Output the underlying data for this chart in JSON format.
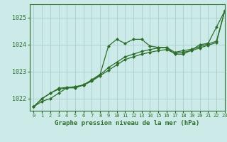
{
  "background_color": "#cceae7",
  "grid_color": "#aacccc",
  "line_color": "#2d6e2d",
  "title": "Graphe pression niveau de la mer (hPa)",
  "xlim": [
    -0.5,
    23
  ],
  "ylim": [
    1021.55,
    1025.5
  ],
  "yticks": [
    1022,
    1023,
    1024,
    1025
  ],
  "xticks": [
    0,
    1,
    2,
    3,
    4,
    5,
    6,
    7,
    8,
    9,
    10,
    11,
    12,
    13,
    14,
    15,
    16,
    17,
    18,
    19,
    20,
    21,
    22,
    23
  ],
  "series1": [
    1021.7,
    1021.9,
    1022.0,
    1022.2,
    1022.4,
    1022.45,
    1022.5,
    1022.7,
    1022.9,
    1023.95,
    1024.2,
    1024.05,
    1024.2,
    1024.2,
    1023.95,
    1023.9,
    1023.9,
    1023.65,
    1023.65,
    1023.8,
    1024.0,
    1024.05,
    1024.65,
    1025.25
  ],
  "series2": [
    1021.7,
    1022.0,
    1022.2,
    1022.35,
    1022.4,
    1022.4,
    1022.5,
    1022.65,
    1022.85,
    1023.05,
    1023.25,
    1023.45,
    1023.55,
    1023.65,
    1023.72,
    1023.78,
    1023.82,
    1023.68,
    1023.72,
    1023.78,
    1023.88,
    1023.98,
    1024.08,
    1025.25
  ],
  "series3": [
    1021.7,
    1022.0,
    1022.2,
    1022.38,
    1022.42,
    1022.42,
    1022.52,
    1022.68,
    1022.88,
    1023.15,
    1023.35,
    1023.55,
    1023.65,
    1023.75,
    1023.82,
    1023.88,
    1023.9,
    1023.72,
    1023.78,
    1023.83,
    1023.93,
    1024.03,
    1024.13,
    1025.25
  ]
}
